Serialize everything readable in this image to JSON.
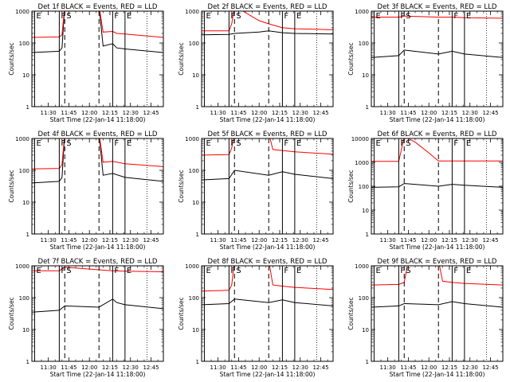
{
  "figure": {
    "background": "#ffffff",
    "series_colors": {
      "events": "#000000",
      "lld": "#ff0000"
    }
  },
  "chart_data": [
    {
      "type": "line",
      "title": "Det 1f BLACK = Events, RED = LLD",
      "xlabel": "Start Time (22-Jan-14 11:18:00)",
      "ylabel": "Counts/sec",
      "yscale": "log",
      "ylim": [
        1,
        1000
      ],
      "xlim": [
        "11:18",
        "12:54"
      ],
      "x_ticks": [
        "11:30",
        "11:45",
        "12:00",
        "12:15",
        "12:30",
        "12:45"
      ],
      "y_ticks": [
        "1",
        "10",
        "100",
        "1000"
      ],
      "grid": false,
      "interval_markers": [
        {
          "label": "E",
          "time": "11:20",
          "style": "solid"
        },
        {
          "label": "F",
          "time": "11:38",
          "style": "solid"
        },
        {
          "label": "S",
          "time": "11:42",
          "style": "dashed"
        },
        {
          "label": "",
          "time": "12:07",
          "style": "dashed"
        },
        {
          "label": "F",
          "time": "12:17",
          "style": "solid"
        },
        {
          "label": "E",
          "time": "12:26",
          "style": "solid"
        },
        {
          "label": "",
          "time": "12:42",
          "style": "dotted"
        }
      ],
      "series": [
        {
          "color": "#000000",
          "x": [
            "11:18",
            "11:38",
            "11:40",
            "11:42",
            "12:07",
            "12:10",
            "12:17",
            "12:20",
            "12:26",
            "12:54"
          ],
          "values": [
            50,
            55,
            70,
            1500,
            1500,
            80,
            95,
            70,
            65,
            50
          ]
        },
        {
          "color": "#ff0000",
          "x": [
            "11:18",
            "11:38",
            "11:40",
            "11:42",
            "12:07",
            "12:10",
            "12:17",
            "12:20",
            "12:26",
            "12:54"
          ],
          "values": [
            150,
            155,
            180,
            1500,
            1500,
            220,
            230,
            200,
            190,
            150
          ]
        }
      ]
    },
    {
      "type": "line",
      "title": "Det 2f BLACK = Events, RED = LLD",
      "xlabel": "Start Time (22-Jan-14 11:18:00)",
      "ylabel": "Counts/sec",
      "yscale": "log",
      "ylim": [
        1,
        1000
      ],
      "xlim": [
        "11:18",
        "12:54"
      ],
      "x_ticks": [
        "11:30",
        "11:45",
        "12:00",
        "12:15",
        "12:30",
        "12:45"
      ],
      "y_ticks": [
        "1",
        "10",
        "100",
        "1000"
      ],
      "grid": false,
      "interval_markers": [
        {
          "label": "E",
          "time": "11:20",
          "style": "solid"
        },
        {
          "label": "F",
          "time": "11:38",
          "style": "solid"
        },
        {
          "label": "S",
          "time": "11:42",
          "style": "dashed"
        },
        {
          "label": "",
          "time": "12:07",
          "style": "dashed"
        },
        {
          "label": "F",
          "time": "12:17",
          "style": "solid"
        },
        {
          "label": "E",
          "time": "12:26",
          "style": "solid"
        },
        {
          "label": "",
          "time": "12:42",
          "style": "dotted"
        }
      ],
      "series": [
        {
          "color": "#000000",
          "x": [
            "11:18",
            "11:38",
            "11:42",
            "12:00",
            "12:07",
            "12:17",
            "12:26",
            "12:54"
          ],
          "values": [
            180,
            185,
            200,
            220,
            240,
            210,
            200,
            190
          ]
        },
        {
          "color": "#ff0000",
          "x": [
            "11:18",
            "11:38",
            "11:40",
            "11:42",
            "11:50",
            "12:00",
            "12:07",
            "12:17",
            "12:26",
            "12:54"
          ],
          "values": [
            240,
            240,
            400,
            1500,
            900,
            500,
            400,
            300,
            280,
            260
          ]
        }
      ]
    },
    {
      "type": "line",
      "title": "Det 3f BLACK = Events, RED = LLD",
      "xlabel": "Start Time (22-Jan-14 11:18:00)",
      "ylabel": "Counts/sec",
      "yscale": "log",
      "ylim": [
        1,
        1000
      ],
      "xlim": [
        "11:18",
        "12:54"
      ],
      "x_ticks": [
        "11:30",
        "11:45",
        "12:00",
        "12:15",
        "12:30",
        "12:45"
      ],
      "y_ticks": [
        "1",
        "10",
        "100",
        "1000"
      ],
      "grid": false,
      "interval_markers": [
        {
          "label": "E",
          "time": "11:20",
          "style": "solid"
        },
        {
          "label": "F",
          "time": "11:38",
          "style": "solid"
        },
        {
          "label": "S",
          "time": "11:42",
          "style": "dashed"
        },
        {
          "label": "",
          "time": "12:07",
          "style": "dashed"
        },
        {
          "label": "F",
          "time": "12:17",
          "style": "solid"
        },
        {
          "label": "E",
          "time": "12:26",
          "style": "solid"
        },
        {
          "label": "",
          "time": "12:42",
          "style": "dotted"
        }
      ],
      "series": [
        {
          "color": "#000000",
          "x": [
            "11:18",
            "11:38",
            "11:42",
            "12:07",
            "12:17",
            "12:26",
            "12:54"
          ],
          "values": [
            35,
            40,
            60,
            45,
            55,
            45,
            35
          ]
        },
        {
          "color": "#ff0000",
          "x": [
            "11:18",
            "11:38",
            "11:42",
            "12:07",
            "12:17",
            "12:26",
            "12:54"
          ],
          "values": [
            650,
            650,
            700,
            650,
            650,
            620,
            600
          ]
        }
      ]
    },
    {
      "type": "line",
      "title": "Det 4f BLACK = Events, RED = LLD",
      "xlabel": "Start Time (22-Jan-14 11:18:00)",
      "ylabel": "Counts/sec",
      "yscale": "log",
      "ylim": [
        1,
        1000
      ],
      "xlim": [
        "11:18",
        "12:54"
      ],
      "x_ticks": [
        "11:30",
        "11:45",
        "12:00",
        "12:15",
        "12:30",
        "12:45"
      ],
      "y_ticks": [
        "1",
        "10",
        "100",
        "1000"
      ],
      "grid": false,
      "interval_markers": [
        {
          "label": "E",
          "time": "11:20",
          "style": "solid"
        },
        {
          "label": "F",
          "time": "11:38",
          "style": "solid"
        },
        {
          "label": "S",
          "time": "11:42",
          "style": "dashed"
        },
        {
          "label": "",
          "time": "12:07",
          "style": "dashed"
        },
        {
          "label": "F",
          "time": "12:17",
          "style": "solid"
        },
        {
          "label": "E",
          "time": "12:26",
          "style": "solid"
        },
        {
          "label": "",
          "time": "12:42",
          "style": "dotted"
        }
      ],
      "series": [
        {
          "color": "#000000",
          "x": [
            "11:18",
            "11:38",
            "11:40",
            "11:42",
            "12:07",
            "12:10",
            "12:17",
            "12:26",
            "12:54"
          ],
          "values": [
            40,
            45,
            60,
            1500,
            1500,
            70,
            80,
            60,
            45
          ]
        },
        {
          "color": "#ff0000",
          "x": [
            "11:18",
            "11:38",
            "11:40",
            "11:42",
            "12:07",
            "12:10",
            "12:17",
            "12:26",
            "12:54"
          ],
          "values": [
            110,
            115,
            150,
            1500,
            1500,
            180,
            190,
            160,
            130
          ]
        }
      ]
    },
    {
      "type": "line",
      "title": "Det 5f BLACK = Events, RED = LLD",
      "xlabel": "Start Time (22-Jan-14 11:18:00)",
      "ylabel": "Counts/sec",
      "yscale": "log",
      "ylim": [
        1,
        1000
      ],
      "xlim": [
        "11:18",
        "12:54"
      ],
      "x_ticks": [
        "11:30",
        "11:45",
        "12:00",
        "12:15",
        "12:30",
        "12:45"
      ],
      "y_ticks": [
        "1",
        "10",
        "100",
        "1000"
      ],
      "grid": false,
      "interval_markers": [
        {
          "label": "E",
          "time": "11:20",
          "style": "solid"
        },
        {
          "label": "F",
          "time": "11:38",
          "style": "solid"
        },
        {
          "label": "S",
          "time": "11:42",
          "style": "dashed"
        },
        {
          "label": "",
          "time": "12:07",
          "style": "dashed"
        },
        {
          "label": "F",
          "time": "12:17",
          "style": "solid"
        },
        {
          "label": "E",
          "time": "12:26",
          "style": "solid"
        },
        {
          "label": "",
          "time": "12:42",
          "style": "dotted"
        }
      ],
      "series": [
        {
          "color": "#000000",
          "x": [
            "11:18",
            "11:38",
            "11:42",
            "12:07",
            "12:17",
            "12:26",
            "12:54"
          ],
          "values": [
            50,
            55,
            100,
            70,
            90,
            75,
            55
          ]
        },
        {
          "color": "#ff0000",
          "x": [
            "11:18",
            "11:38",
            "11:40",
            "11:42",
            "12:07",
            "12:10",
            "12:17",
            "12:26",
            "12:54"
          ],
          "values": [
            300,
            310,
            500,
            1500,
            1500,
            450,
            420,
            380,
            320
          ]
        }
      ]
    },
    {
      "type": "line",
      "title": "Det 6f BLACK = Events, RED = LLD",
      "xlabel": "Start Time (22-Jan-14 11:18:00)",
      "ylabel": "Counts/sec",
      "yscale": "log",
      "ylim": [
        1,
        10000
      ],
      "xlim": [
        "11:18",
        "12:54"
      ],
      "x_ticks": [
        "11:30",
        "11:45",
        "12:00",
        "12:15",
        "12:30",
        "12:45"
      ],
      "y_ticks": [
        "1",
        "10",
        "100",
        "1000",
        "10000"
      ],
      "grid": false,
      "interval_markers": [
        {
          "label": "E",
          "time": "11:20",
          "style": "solid"
        },
        {
          "label": "F",
          "time": "11:38",
          "style": "solid"
        },
        {
          "label": "S",
          "time": "11:42",
          "style": "dashed"
        },
        {
          "label": "",
          "time": "12:07",
          "style": "dashed"
        },
        {
          "label": "F",
          "time": "12:17",
          "style": "solid"
        },
        {
          "label": "E",
          "time": "12:26",
          "style": "solid"
        },
        {
          "label": "",
          "time": "12:42",
          "style": "dotted"
        }
      ],
      "series": [
        {
          "color": "#000000",
          "x": [
            "11:18",
            "11:38",
            "11:42",
            "12:07",
            "12:17",
            "12:26",
            "12:54"
          ],
          "values": [
            90,
            95,
            130,
            100,
            120,
            110,
            90
          ]
        },
        {
          "color": "#ff0000",
          "x": [
            "11:18",
            "11:38",
            "11:42",
            "11:50",
            "12:00",
            "12:07",
            "12:17",
            "12:54"
          ],
          "values": [
            1100,
            1100,
            12000,
            7000,
            2500,
            1150,
            1150,
            1150
          ]
        }
      ]
    },
    {
      "type": "line",
      "title": "Det 7f BLACK = Events, RED = LLD",
      "xlabel": "Start Time (22-Jan-14 11:18:00)",
      "ylabel": "Counts/sec",
      "yscale": "log",
      "ylim": [
        1,
        1000
      ],
      "xlim": [
        "11:18",
        "12:54"
      ],
      "x_ticks": [
        "11:30",
        "11:45",
        "12:00",
        "12:15",
        "12:30",
        "12:45"
      ],
      "y_ticks": [
        "1",
        "10",
        "100",
        "1000"
      ],
      "grid": false,
      "interval_markers": [
        {
          "label": "E",
          "time": "11:20",
          "style": "solid"
        },
        {
          "label": "F",
          "time": "11:38",
          "style": "solid"
        },
        {
          "label": "S",
          "time": "11:42",
          "style": "dashed"
        },
        {
          "label": "",
          "time": "12:07",
          "style": "dashed"
        },
        {
          "label": "F",
          "time": "12:17",
          "style": "solid"
        },
        {
          "label": "E",
          "time": "12:26",
          "style": "solid"
        },
        {
          "label": "",
          "time": "12:42",
          "style": "dotted"
        }
      ],
      "series": [
        {
          "color": "#000000",
          "x": [
            "11:18",
            "11:38",
            "11:42",
            "12:07",
            "12:17",
            "12:20",
            "12:26",
            "12:54"
          ],
          "values": [
            35,
            40,
            55,
            50,
            90,
            70,
            60,
            45
          ]
        },
        {
          "color": "#ff0000",
          "x": [
            "11:18",
            "11:38",
            "11:42",
            "12:07",
            "12:17",
            "12:26",
            "12:54"
          ],
          "values": [
            700,
            700,
            900,
            750,
            700,
            680,
            650
          ]
        }
      ]
    },
    {
      "type": "line",
      "title": "Det 8f BLACK = Events, RED = LLD",
      "xlabel": "Start Time (22-Jan-14 11:18:00)",
      "ylabel": "Counts/sec",
      "yscale": "log",
      "ylim": [
        1,
        1000
      ],
      "xlim": [
        "11:18",
        "12:54"
      ],
      "x_ticks": [
        "11:30",
        "11:45",
        "12:00",
        "12:15",
        "12:30",
        "12:45"
      ],
      "y_ticks": [
        "1",
        "10",
        "100",
        "1000"
      ],
      "grid": false,
      "interval_markers": [
        {
          "label": "E",
          "time": "11:20",
          "style": "solid"
        },
        {
          "label": "F",
          "time": "11:38",
          "style": "solid"
        },
        {
          "label": "S",
          "time": "11:42",
          "style": "dashed"
        },
        {
          "label": "",
          "time": "12:07",
          "style": "dashed"
        },
        {
          "label": "F",
          "time": "12:17",
          "style": "solid"
        },
        {
          "label": "E",
          "time": "12:26",
          "style": "solid"
        },
        {
          "label": "",
          "time": "12:42",
          "style": "dotted"
        }
      ],
      "series": [
        {
          "color": "#000000",
          "x": [
            "11:18",
            "11:38",
            "11:42",
            "12:07",
            "12:17",
            "12:26",
            "12:54"
          ],
          "values": [
            60,
            65,
            90,
            70,
            85,
            70,
            55
          ]
        },
        {
          "color": "#ff0000",
          "x": [
            "11:18",
            "11:38",
            "11:40",
            "11:42",
            "12:07",
            "12:10",
            "12:17",
            "12:26",
            "12:54"
          ],
          "values": [
            160,
            170,
            250,
            1500,
            1500,
            250,
            230,
            210,
            180
          ]
        }
      ]
    },
    {
      "type": "line",
      "title": "Det 9f BLACK = Events, RED = LLD",
      "xlabel": "Start Time (22-Jan-14 11:18:00)",
      "ylabel": "Counts/sec",
      "yscale": "log",
      "ylim": [
        1,
        1000
      ],
      "xlim": [
        "11:18",
        "12:54"
      ],
      "x_ticks": [
        "11:30",
        "11:45",
        "12:00",
        "12:15",
        "12:30",
        "12:45"
      ],
      "y_ticks": [
        "1",
        "10",
        "100",
        "1000"
      ],
      "grid": false,
      "interval_markers": [
        {
          "label": "E",
          "time": "11:20",
          "style": "solid"
        },
        {
          "label": "F",
          "time": "11:38",
          "style": "solid"
        },
        {
          "label": "S",
          "time": "11:42",
          "style": "dashed"
        },
        {
          "label": "",
          "time": "12:07",
          "style": "dashed"
        },
        {
          "label": "F",
          "time": "12:17",
          "style": "solid"
        },
        {
          "label": "E",
          "time": "12:26",
          "style": "solid"
        },
        {
          "label": "",
          "time": "12:42",
          "style": "dotted"
        }
      ],
      "series": [
        {
          "color": "#000000",
          "x": [
            "11:18",
            "11:38",
            "11:42",
            "12:07",
            "12:17",
            "12:26",
            "12:54"
          ],
          "values": [
            50,
            55,
            65,
            60,
            75,
            65,
            50
          ]
        },
        {
          "color": "#ff0000",
          "x": [
            "11:18",
            "11:38",
            "11:42",
            "11:45",
            "12:07",
            "12:10",
            "12:17",
            "12:26",
            "12:54"
          ],
          "values": [
            250,
            260,
            300,
            1500,
            1500,
            330,
            300,
            280,
            250
          ]
        }
      ]
    }
  ]
}
